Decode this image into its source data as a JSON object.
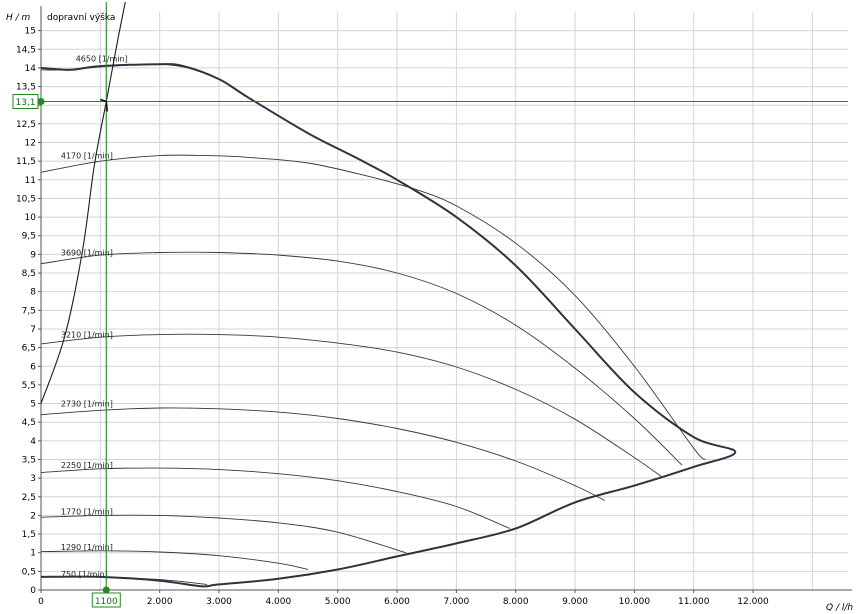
{
  "chart_data": {
    "type": "line",
    "xlabel": "Q / l/h",
    "ylabel": "H / m",
    "title": "dopravní výška",
    "xlim": [
      0,
      13600
    ],
    "ylim": [
      0,
      15.5
    ],
    "x_ticks": [
      {
        "value": 0,
        "label": "0"
      },
      {
        "value": 2000,
        "label": "2.000"
      },
      {
        "value": 3000,
        "label": "3.000"
      },
      {
        "value": 4000,
        "label": "4.000"
      },
      {
        "value": 5000,
        "label": "5.000"
      },
      {
        "value": 6000,
        "label": "6.000"
      },
      {
        "value": 7000,
        "label": "7.000"
      },
      {
        "value": 8000,
        "label": "8.000"
      },
      {
        "value": 9000,
        "label": "9.000"
      },
      {
        "value": 10000,
        "label": "10.000"
      },
      {
        "value": 11000,
        "label": "11.000"
      },
      {
        "value": 12000,
        "label": "12.000"
      }
    ],
    "x_gridlines": [
      0,
      1000,
      2000,
      3000,
      4000,
      5000,
      6000,
      7000,
      8000,
      9000,
      10000,
      11000,
      12000,
      13000
    ],
    "y_ticks": [
      {
        "value": 0,
        "label": "0"
      },
      {
        "value": 0.5,
        "label": "0,5"
      },
      {
        "value": 1,
        "label": "1"
      },
      {
        "value": 1.5,
        "label": "1,5"
      },
      {
        "value": 2,
        "label": "2"
      },
      {
        "value": 2.5,
        "label": "2,5"
      },
      {
        "value": 3,
        "label": "3"
      },
      {
        "value": 3.5,
        "label": "3,5"
      },
      {
        "value": 4,
        "label": "4"
      },
      {
        "value": 4.5,
        "label": "4,5"
      },
      {
        "value": 5,
        "label": "5"
      },
      {
        "value": 5.5,
        "label": "5,5"
      },
      {
        "value": 6,
        "label": "6"
      },
      {
        "value": 6.5,
        "label": "6,5"
      },
      {
        "value": 7,
        "label": "7"
      },
      {
        "value": 7.5,
        "label": "7,5"
      },
      {
        "value": 8,
        "label": "8"
      },
      {
        "value": 8.5,
        "label": "8,5"
      },
      {
        "value": 9,
        "label": "9"
      },
      {
        "value": 9.5,
        "label": "9,5"
      },
      {
        "value": 10,
        "label": "10"
      },
      {
        "value": 10.5,
        "label": "10,5"
      },
      {
        "value": 11,
        "label": "11"
      },
      {
        "value": 11.5,
        "label": "11,5"
      },
      {
        "value": 12,
        "label": "12"
      },
      {
        "value": 12.5,
        "label": "12,5"
      },
      {
        "value": 13,
        "label": "13"
      },
      {
        "value": 13.5,
        "label": "13,5"
      },
      {
        "value": 14,
        "label": "14"
      },
      {
        "value": 14.5,
        "label": "14,5"
      },
      {
        "value": 15,
        "label": "15"
      }
    ],
    "grid": true,
    "speed_curves": [
      {
        "label": "4650 [1/min]",
        "label_at": [
          450,
          14.2
        ],
        "x": [
          0,
          400,
          1200,
          2000,
          2500
        ],
        "y": [
          13.95,
          13.95,
          14.05,
          14.1,
          14.0
        ]
      },
      {
        "label": "4170 [1/min]",
        "label_at": [
          200,
          11.6
        ],
        "x": [
          0,
          1000,
          2000,
          2800,
          3500,
          4500,
          5500,
          6300,
          7000,
          8000,
          9000,
          10000,
          11000,
          11200
        ],
        "y": [
          11.2,
          11.5,
          11.65,
          11.65,
          11.6,
          11.45,
          11.1,
          10.75,
          10.3,
          9.3,
          7.9,
          6.0,
          3.8,
          3.5
        ]
      },
      {
        "label": "3690 [1/min]",
        "label_at": [
          200,
          9.0
        ],
        "x": [
          0,
          1000,
          2000,
          3000,
          4000,
          5000,
          6000,
          7000,
          8000,
          9000,
          10000,
          10800
        ],
        "y": [
          8.75,
          8.98,
          9.05,
          9.05,
          8.98,
          8.82,
          8.5,
          7.95,
          7.1,
          5.95,
          4.6,
          3.35
        ]
      },
      {
        "label": "3210 [1/min]",
        "label_at": [
          200,
          6.8
        ],
        "x": [
          0,
          1000,
          2000,
          3000,
          4000,
          5000,
          6000,
          7000,
          8000,
          9000,
          10000,
          10450
        ],
        "y": [
          6.6,
          6.78,
          6.85,
          6.85,
          6.78,
          6.62,
          6.38,
          5.98,
          5.38,
          4.58,
          3.55,
          3.05
        ]
      },
      {
        "label": "2730 [1/min]",
        "label_at": [
          200,
          4.95
        ],
        "x": [
          0,
          1000,
          2000,
          3000,
          4000,
          5000,
          6000,
          7000,
          8000,
          9000,
          9500
        ],
        "y": [
          4.7,
          4.82,
          4.88,
          4.86,
          4.77,
          4.6,
          4.33,
          3.96,
          3.46,
          2.8,
          2.4
        ]
      },
      {
        "label": "2250 [1/min]",
        "label_at": [
          200,
          3.3
        ],
        "x": [
          0,
          1000,
          2000,
          3000,
          4000,
          5000,
          6000,
          7000,
          7900
        ],
        "y": [
          3.15,
          3.25,
          3.27,
          3.23,
          3.12,
          2.93,
          2.64,
          2.24,
          1.65
        ]
      },
      {
        "label": "1770 [1/min]",
        "label_at": [
          200,
          2.05
        ],
        "x": [
          0,
          1000,
          2000,
          3000,
          4000,
          5000,
          6150
        ],
        "y": [
          1.95,
          2.0,
          2.0,
          1.93,
          1.8,
          1.55,
          1.0
        ]
      },
      {
        "label": "1290 [1/min]",
        "label_at": [
          200,
          1.1
        ],
        "x": [
          0,
          1000,
          2000,
          3000,
          4000,
          4500
        ],
        "y": [
          1.03,
          1.05,
          1.02,
          0.92,
          0.72,
          0.55
        ]
      },
      {
        "label": "750 [1/min]",
        "label_at": [
          200,
          0.38
        ],
        "x": [
          0,
          1000,
          2000,
          2800
        ],
        "y": [
          0.35,
          0.35,
          0.28,
          0.15
        ]
      }
    ],
    "envelope_curve": {
      "x": [
        0,
        500,
        1000,
        2000,
        2400,
        3000,
        3500,
        4500,
        5300,
        6000,
        7000,
        8000,
        9000,
        10000,
        11000,
        11700,
        11000,
        10000,
        9000,
        8000,
        7000,
        6000,
        5000,
        4000,
        3000,
        2700,
        2000,
        1000,
        0
      ],
      "y": [
        14.0,
        13.95,
        14.05,
        14.1,
        14.05,
        13.7,
        13.2,
        12.25,
        11.6,
        11.0,
        10.0,
        8.7,
        7.0,
        5.3,
        4.1,
        3.7,
        3.3,
        2.8,
        2.35,
        1.65,
        1.25,
        0.9,
        0.55,
        0.3,
        0.15,
        0.1,
        0.25,
        0.35,
        0.35
      ]
    },
    "system_curve": {
      "x": [
        0,
        400,
        700,
        900,
        1100,
        1300,
        1450
      ],
      "y": [
        5.0,
        6.8,
        9.1,
        11.4,
        13.1,
        14.8,
        16.0
      ]
    },
    "operating_point": {
      "x": 1100,
      "y": 13.1,
      "x_label": "1100",
      "y_label": "13,1"
    },
    "colors": {
      "grid": "#d4d4d4",
      "curve": "#303845",
      "envelope": "#2c3440",
      "marker": "#1f8a1f"
    }
  }
}
